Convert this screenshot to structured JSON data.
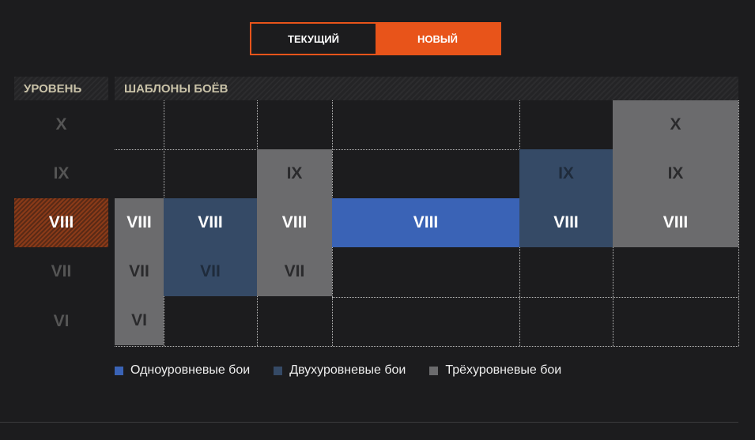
{
  "toggle": {
    "current": "ТЕКУЩИЙ",
    "new": "НОВЫЙ",
    "selected": "new"
  },
  "headers": {
    "level": "УРОВЕНЬ",
    "templates": "ШАБЛОНЫ БОЁВ"
  },
  "levels": [
    "X",
    "IX",
    "VIII",
    "VII",
    "VI"
  ],
  "selected_level": "VIII",
  "templates": [
    {
      "type": "three",
      "tiers": [
        "VIII",
        "VII",
        "VI"
      ]
    },
    {
      "type": "two",
      "tiers": [
        "VIII",
        "VII"
      ]
    },
    {
      "type": "three",
      "tiers": [
        "IX",
        "VIII",
        "VII"
      ]
    },
    {
      "type": "one",
      "tiers": [
        "VIII"
      ]
    },
    {
      "type": "two",
      "tiers": [
        "IX",
        "VIII"
      ]
    },
    {
      "type": "three",
      "tiers": [
        "X",
        "IX",
        "VIII"
      ]
    }
  ],
  "legend": [
    {
      "label": "Одноуровневые бои",
      "color": "#3a63b6"
    },
    {
      "label": "Двухуровневые бои",
      "color": "#354a66"
    },
    {
      "label": "Трёхуровневые бои",
      "color": "#6b6b6d"
    }
  ]
}
